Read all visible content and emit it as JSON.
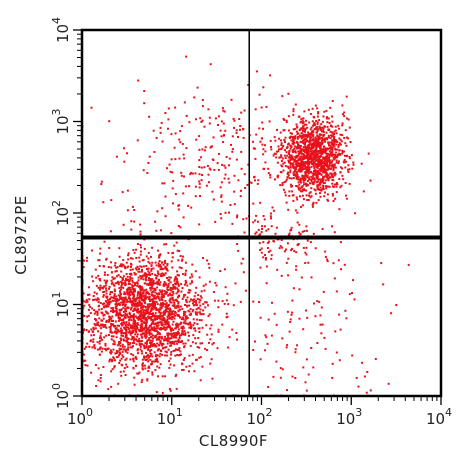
{
  "chart_data": {
    "type": "scatter",
    "xlabel": "CL8990F",
    "ylabel": "CL8972PE",
    "x_scale": "log",
    "y_scale": "log",
    "xlim": [
      1,
      10000
    ],
    "ylim": [
      1,
      10000
    ],
    "x_ticks": [
      {
        "value": 1,
        "base": "10",
        "exp": "0"
      },
      {
        "value": 10,
        "base": "10",
        "exp": "1"
      },
      {
        "value": 100,
        "base": "10",
        "exp": "2"
      },
      {
        "value": 1000,
        "base": "10",
        "exp": "3"
      },
      {
        "value": 10000,
        "base": "10",
        "exp": "4"
      }
    ],
    "y_ticks": [
      {
        "value": 1,
        "base": "10",
        "exp": "0"
      },
      {
        "value": 10,
        "base": "10",
        "exp": "1"
      },
      {
        "value": 100,
        "base": "10",
        "exp": "2"
      },
      {
        "value": 1000,
        "base": "10",
        "exp": "3"
      },
      {
        "value": 10000,
        "base": "10",
        "exp": "4"
      }
    ],
    "grid": false,
    "point_color": "#e8121c",
    "quadrant_gates": {
      "x": 73,
      "y": 54
    },
    "populations": [
      {
        "center": [
          5,
          8
        ],
        "spread_decades": [
          0.35,
          0.32
        ],
        "count": 2200
      },
      {
        "center": [
          380,
          420
        ],
        "spread_decades": [
          0.17,
          0.2
        ],
        "count": 1300
      },
      {
        "center": [
          40,
          400
        ],
        "spread_decades": [
          0.6,
          0.4
        ],
        "count": 320
      },
      {
        "center": [
          300,
          8
        ],
        "spread_decades": [
          0.5,
          0.5
        ],
        "count": 140
      },
      {
        "center": [
          200,
          50
        ],
        "spread_decades": [
          0.25,
          0.15
        ],
        "count": 90
      }
    ]
  }
}
